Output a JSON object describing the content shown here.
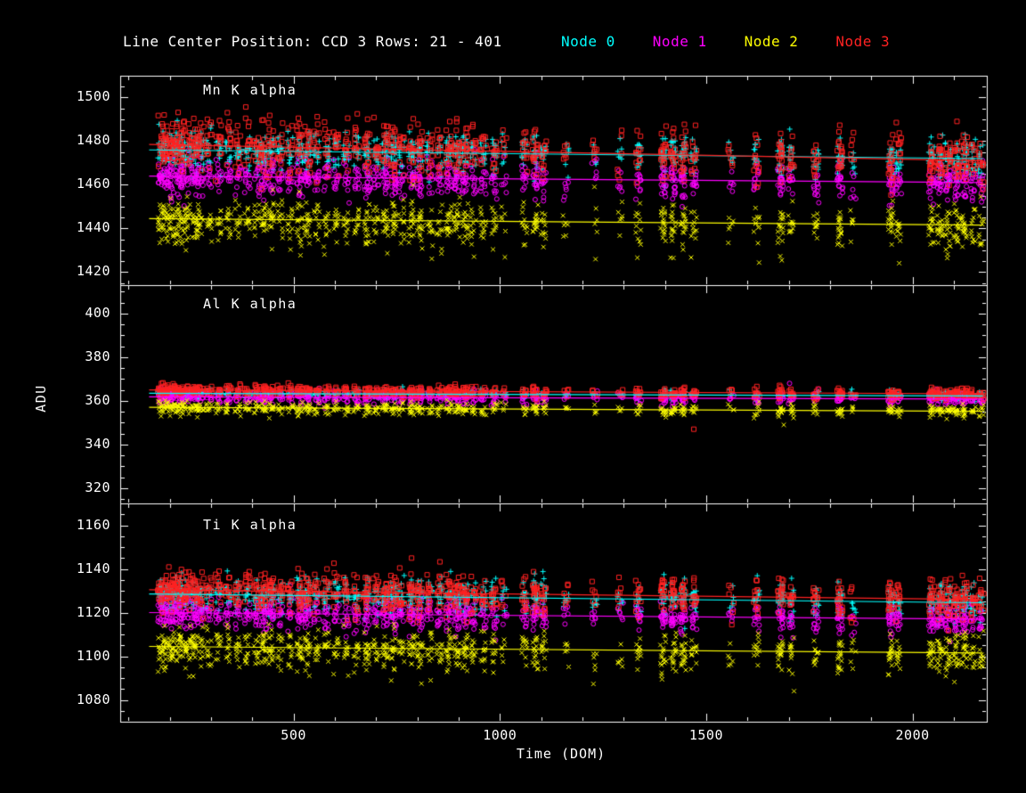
{
  "figure": {
    "background": "#000000",
    "foreground": "#ffffff"
  },
  "chart_data": {
    "type": "scatter",
    "title": "Line Center Position: CCD 3 Rows: 21 - 401",
    "xlabel": "Time (DOM)",
    "ylabel": "ADU",
    "xlim": [
      80,
      2180
    ],
    "xticks": [
      500,
      1000,
      1500,
      2000
    ],
    "x_minor_step": 100,
    "x_major_step": 500,
    "trend_x": [
      150,
      2170
    ],
    "grid": false,
    "legend_position": "top",
    "legend": [
      {
        "label": "Node 0",
        "color": "#00ffff",
        "marker": "plus"
      },
      {
        "label": "Node 1",
        "color": "#ff00ff",
        "marker": "circle"
      },
      {
        "label": "Node 2",
        "color": "#ffff00",
        "marker": "cross"
      },
      {
        "label": "Node 3",
        "color": "#ff2222",
        "marker": "square"
      }
    ],
    "cluster_times": [
      [
        178,
        3
      ],
      [
        192,
        3
      ],
      [
        206,
        3
      ],
      [
        220,
        3
      ],
      [
        234,
        3
      ],
      [
        248,
        2
      ],
      [
        262,
        3
      ],
      [
        276,
        2
      ],
      [
        295,
        2
      ],
      [
        318,
        2
      ],
      [
        342,
        2
      ],
      [
        365,
        2
      ],
      [
        388,
        2
      ],
      [
        410,
        2
      ],
      [
        428,
        3
      ],
      [
        446,
        3
      ],
      [
        468,
        2
      ],
      [
        492,
        2
      ],
      [
        515,
        3
      ],
      [
        534,
        3
      ],
      [
        556,
        2
      ],
      [
        580,
        2
      ],
      [
        604,
        2
      ],
      [
        628,
        2
      ],
      [
        652,
        2
      ],
      [
        678,
        3
      ],
      [
        700,
        2
      ],
      [
        722,
        3
      ],
      [
        742,
        3
      ],
      [
        762,
        2
      ],
      [
        786,
        3
      ],
      [
        806,
        3
      ],
      [
        830,
        2
      ],
      [
        854,
        2
      ],
      [
        876,
        3
      ],
      [
        896,
        3
      ],
      [
        916,
        3
      ],
      [
        936,
        2
      ],
      [
        960,
        2
      ],
      [
        986,
        2
      ],
      [
        1010,
        1
      ],
      [
        1060,
        2
      ],
      [
        1086,
        3
      ],
      [
        1106,
        2
      ],
      [
        1160,
        1
      ],
      [
        1230,
        1
      ],
      [
        1292,
        1
      ],
      [
        1336,
        2
      ],
      [
        1396,
        3
      ],
      [
        1420,
        3
      ],
      [
        1444,
        3
      ],
      [
        1470,
        2
      ],
      [
        1560,
        1
      ],
      [
        1622,
        2
      ],
      [
        1680,
        3
      ],
      [
        1706,
        2
      ],
      [
        1766,
        2
      ],
      [
        1824,
        3
      ],
      [
        1856,
        1
      ],
      [
        1948,
        3
      ],
      [
        1966,
        2
      ],
      [
        2046,
        3
      ],
      [
        2066,
        3
      ],
      [
        2086,
        3
      ],
      [
        2106,
        3
      ],
      [
        2126,
        3
      ],
      [
        2146,
        2
      ],
      [
        2166,
        2
      ]
    ],
    "panels": [
      {
        "label": "Mn K alpha",
        "ylim": [
          1414,
          1510
        ],
        "yticks": [
          1420,
          1440,
          1460,
          1480,
          1500
        ],
        "y_minor_step": 5,
        "n_per_weight": 6,
        "series": [
          {
            "name": "Node 0",
            "marker": "plus",
            "color": "#00ffff",
            "trend": [
              1476.0,
              1472.0
            ],
            "sigma": 4.5,
            "tail": 0
          },
          {
            "name": "Node 1",
            "marker": "circle",
            "color": "#ff00ff",
            "trend": [
              1464.0,
              1461.0
            ],
            "sigma": 4.0,
            "tail": 3
          },
          {
            "name": "Node 2",
            "marker": "cross",
            "color": "#ffff00",
            "trend": [
              1444.5,
              1441.5
            ],
            "sigma": 4.5,
            "tail": 10
          },
          {
            "name": "Node 3",
            "marker": "square",
            "color": "#ff2222",
            "trend": [
              1478.5,
              1471.0
            ],
            "sigma": 6.0,
            "tail": 0
          }
        ],
        "outliers": []
      },
      {
        "label": "Al K alpha",
        "ylim": [
          313,
          413
        ],
        "yticks": [
          320,
          340,
          360,
          380,
          400
        ],
        "y_minor_step": 5,
        "n_per_weight": 4,
        "series": [
          {
            "name": "Node 0",
            "marker": "plus",
            "color": "#00ffff",
            "trend": [
              363.5,
              362.2
            ],
            "sigma": 1.0,
            "tail": 0
          },
          {
            "name": "Node 1",
            "marker": "circle",
            "color": "#ff00ff",
            "trend": [
              361.8,
              360.8
            ],
            "sigma": 1.5,
            "tail": 0
          },
          {
            "name": "Node 2",
            "marker": "cross",
            "color": "#ffff00",
            "trend": [
              357.0,
              355.2
            ],
            "sigma": 1.4,
            "tail": 2
          },
          {
            "name": "Node 3",
            "marker": "square",
            "color": "#ff2222",
            "trend": [
              365.0,
              363.2
            ],
            "sigma": 1.3,
            "tail": 0
          }
        ],
        "outliers": [
          {
            "x": 1470,
            "y": 347,
            "node": "Node 3"
          },
          {
            "x": 1688,
            "y": 349,
            "node": "Node 2"
          },
          {
            "x": 1702,
            "y": 368,
            "node": "Node 1"
          }
        ]
      },
      {
        "label": "Ti K alpha",
        "ylim": [
          1070,
          1170
        ],
        "yticks": [
          1080,
          1100,
          1120,
          1140,
          1160
        ],
        "y_minor_step": 5,
        "n_per_weight": 6,
        "series": [
          {
            "name": "Node 0",
            "marker": "plus",
            "color": "#00ffff",
            "trend": [
              1128.5,
              1124.5
            ],
            "sigma": 4.0,
            "tail": 0
          },
          {
            "name": "Node 1",
            "marker": "circle",
            "color": "#ff00ff",
            "trend": [
              1120.0,
              1117.0
            ],
            "sigma": 3.5,
            "tail": 3
          },
          {
            "name": "Node 2",
            "marker": "cross",
            "color": "#ffff00",
            "trend": [
              1104.5,
              1101.5
            ],
            "sigma": 4.0,
            "tail": 9
          },
          {
            "name": "Node 3",
            "marker": "square",
            "color": "#ff2222",
            "trend": [
              1130.5,
              1126.0
            ],
            "sigma": 4.5,
            "tail": 0
          }
        ],
        "outliers": []
      }
    ]
  }
}
